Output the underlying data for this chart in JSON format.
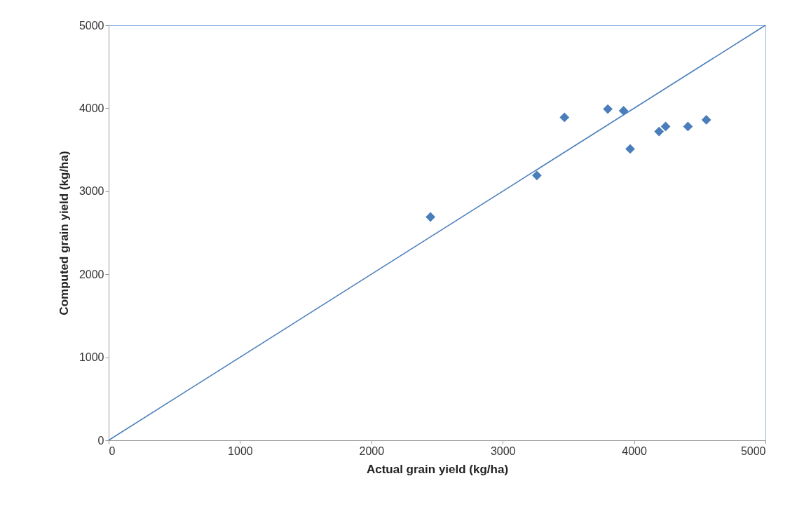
{
  "chart_data": {
    "type": "scatter",
    "xlabel": "Actual grain yield (kg/ha)",
    "ylabel": "Computed grain yield (kg/ha)",
    "xlim": [
      0,
      5000
    ],
    "xticks": [
      0,
      1000,
      2000,
      3000,
      4000,
      5000
    ],
    "ylim": [
      0,
      5000
    ],
    "yticks": [
      0,
      1000,
      2000,
      3000,
      4000,
      5000
    ],
    "grid": false,
    "marker": "diamond",
    "series": [
      {
        "color": "#4a7ebb",
        "x": [
          2450,
          3260,
          3470,
          3800,
          3920,
          3970,
          4190,
          4240,
          4410,
          4550
        ],
        "values": [
          2690,
          3190,
          3890,
          3990,
          3970,
          3510,
          3720,
          3780,
          3780,
          3860
        ]
      },
      {
        "type": "line",
        "marker": "none",
        "color": "#4a7ebb",
        "x": [
          0,
          5000
        ],
        "values": [
          0,
          5000
        ]
      }
    ]
  }
}
